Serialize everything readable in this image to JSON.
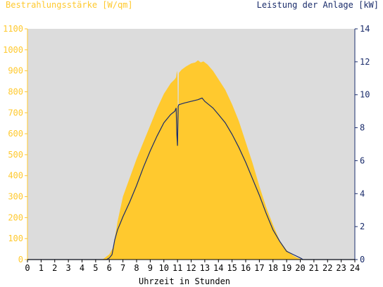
{
  "chart_data": {
    "type": "area",
    "left_axis_title": "Bestrahlungsstärke [W/qm]",
    "right_axis_title": "Leistung der Anlage [kW]",
    "xlabel": "Uhrzeit in Stunden",
    "x_ticks": [
      "0",
      "1",
      "2",
      "3",
      "4",
      "5",
      "6",
      "7",
      "8",
      "9",
      "10",
      "11",
      "12",
      "13",
      "14",
      "15",
      "16",
      "17",
      "18",
      "19",
      "20",
      "21",
      "22",
      "23",
      "24"
    ],
    "y_left_ticks": [
      "0",
      "100",
      "200",
      "300",
      "400",
      "500",
      "600",
      "700",
      "800",
      "900",
      "1000",
      "1100"
    ],
    "y_right_ticks": [
      "0",
      "2",
      "4",
      "6",
      "8",
      "10",
      "12",
      "14"
    ],
    "xlim": [
      0,
      24
    ],
    "ylim_left": [
      0,
      1100
    ],
    "ylim_right": [
      0,
      14
    ],
    "grid": false,
    "colors": {
      "plot_background": "#dcdcdc",
      "irradiance": "#ffc92e",
      "power": "#1a2c6b",
      "left_axis": "#ffc92e",
      "right_axis": "#1a2c6b",
      "xlabel": "#000000"
    },
    "series": [
      {
        "name": "Bestrahlungsstärke",
        "axis": "left",
        "style": "area",
        "x": [
          0,
          5.5,
          6.0,
          6.3,
          6.6,
          7.0,
          7.5,
          8.0,
          8.5,
          9.0,
          9.5,
          10.0,
          10.5,
          10.8,
          10.9,
          10.95,
          11.0,
          11.05,
          11.1,
          11.3,
          11.6,
          12.0,
          12.3,
          12.5,
          12.7,
          12.9,
          13.2,
          13.6,
          14.0,
          14.5,
          15.0,
          15.5,
          16.0,
          16.5,
          17.0,
          17.5,
          18.0,
          18.5,
          19.0,
          19.5,
          19.8,
          20.0,
          20.3,
          24
        ],
        "y": [
          0,
          0,
          25,
          60,
          180,
          300,
          390,
          480,
          560,
          640,
          720,
          790,
          840,
          860,
          870,
          900,
          880,
          550,
          890,
          905,
          920,
          935,
          940,
          950,
          940,
          945,
          930,
          900,
          860,
          810,
          740,
          660,
          560,
          460,
          350,
          250,
          165,
          90,
          45,
          18,
          8,
          3,
          0,
          0
        ]
      },
      {
        "name": "Leistung der Anlage",
        "axis": "right",
        "style": "line",
        "x": [
          0,
          5.8,
          6.0,
          6.2,
          6.4,
          6.6,
          6.8,
          7.0,
          7.5,
          8.0,
          8.5,
          9.0,
          9.5,
          10.0,
          10.5,
          10.8,
          10.9,
          10.95,
          11.0,
          11.05,
          11.1,
          11.5,
          12.0,
          12.5,
          12.8,
          13.0,
          13.3,
          13.6,
          14.0,
          14.5,
          15.0,
          15.5,
          16.0,
          16.5,
          17.0,
          17.5,
          18.0,
          18.5,
          19.0,
          19.5,
          20.0,
          20.2,
          24
        ],
        "y": [
          0,
          0,
          0.1,
          0.3,
          1.2,
          1.8,
          2.2,
          2.6,
          3.5,
          4.5,
          5.6,
          6.6,
          7.5,
          8.3,
          8.8,
          9.0,
          9.2,
          7.6,
          6.9,
          9.3,
          9.4,
          9.5,
          9.6,
          9.7,
          9.8,
          9.6,
          9.4,
          9.2,
          8.8,
          8.3,
          7.6,
          6.8,
          5.9,
          4.9,
          3.9,
          2.8,
          1.8,
          1.1,
          0.5,
          0.3,
          0.1,
          0.0,
          0
        ]
      }
    ]
  }
}
